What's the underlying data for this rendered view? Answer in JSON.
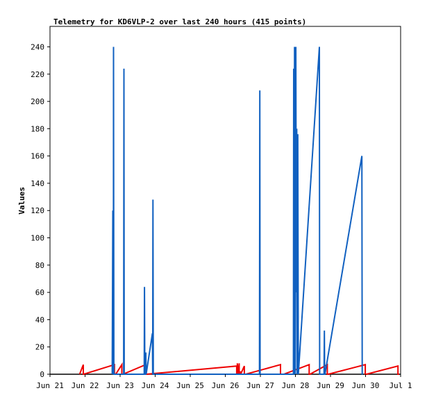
{
  "chart_data": {
    "type": "line",
    "title": "Telemetry for KD6VLP-2 over last 240 hours (415 points)",
    "ylabel": "Values",
    "xlabel": "",
    "ylim": [
      0,
      255
    ],
    "xlim": [
      0,
      240
    ],
    "yticks": [
      0,
      20,
      40,
      60,
      80,
      100,
      120,
      140,
      160,
      180,
      200,
      220,
      240
    ],
    "xticks": [
      {
        "label": "Jun 21",
        "hour": 0
      },
      {
        "label": "Jun 22",
        "hour": 24
      },
      {
        "label": "Jun 23",
        "hour": 48
      },
      {
        "label": "Jun 24",
        "hour": 72
      },
      {
        "label": "Jun 25",
        "hour": 96
      },
      {
        "label": "Jun 26",
        "hour": 120
      },
      {
        "label": "Jun 27",
        "hour": 144
      },
      {
        "label": "Jun 28",
        "hour": 168
      },
      {
        "label": "Jun 29",
        "hour": 192
      },
      {
        "label": "Jun 30",
        "hour": 216
      },
      {
        "label": "Jul 1",
        "hour": 240
      }
    ],
    "grid": false,
    "legend": "none",
    "series": [
      {
        "color": "#000000",
        "x": [
          0,
          240
        ],
        "y": [
          0,
          0
        ]
      },
      {
        "color": "#ee0000",
        "x": [
          20.3,
          22.8,
          22.8,
          23.0,
          44.1,
          44.1,
          45.0,
          45.0,
          49.2,
          49.2,
          50.0,
          50.0,
          65.5,
          65.5,
          65.9,
          65.9,
          127.8,
          127.8,
          128.2,
          128.2,
          128.7,
          128.7,
          129.5,
          129.5,
          130.5,
          130.5,
          133.0,
          133.0,
          134.0,
          134.0,
          157.8,
          157.8,
          160.0,
          160.0,
          177.4,
          177.4,
          178.0,
          178.0,
          189.8,
          189.8,
          190.5,
          190.5,
          215.8,
          215.8,
          216.6,
          216.6,
          238.2,
          238.2,
          239.0
        ],
        "y": [
          0,
          7,
          0,
          0,
          7,
          0,
          0,
          0,
          7,
          0,
          0,
          0,
          7,
          0,
          0,
          0,
          6,
          0,
          0,
          8,
          0,
          0,
          8,
          0,
          2,
          0,
          6,
          0,
          0,
          0,
          7,
          0,
          0,
          0,
          7,
          0,
          0,
          0,
          7,
          0,
          0,
          0,
          7,
          0,
          0,
          0,
          6,
          0,
          0
        ]
      },
      {
        "color": "#1060c0",
        "x": [
          42.6,
          43.0,
          43.4,
          43.5,
          43.7,
          43.8,
          50.4,
          50.6,
          50.8,
          64.5,
          64.7,
          64.9,
          65.4,
          65.6,
          65.8,
          70.1,
          70.3,
          70.5,
          70.7,
          143.4,
          143.6,
          143.8,
          166.6,
          166.8,
          167.1,
          167.4,
          167.9,
          168.3,
          168.6,
          168.9,
          169.2,
          169.6,
          170.0,
          184.4,
          184.6,
          184.8,
          187.6,
          187.8,
          188.0,
          188.2,
          213.5,
          213.7,
          213.9
        ],
        "y": [
          0,
          120,
          0,
          240,
          0,
          0,
          0,
          224,
          0,
          0,
          64,
          0,
          0,
          16,
          0,
          30,
          0,
          128,
          0,
          0,
          208,
          0,
          0,
          224,
          0,
          240,
          0,
          240,
          60,
          180,
          0,
          176,
          0,
          240,
          0,
          0,
          0,
          32,
          0,
          0,
          160,
          0,
          0
        ]
      }
    ]
  }
}
